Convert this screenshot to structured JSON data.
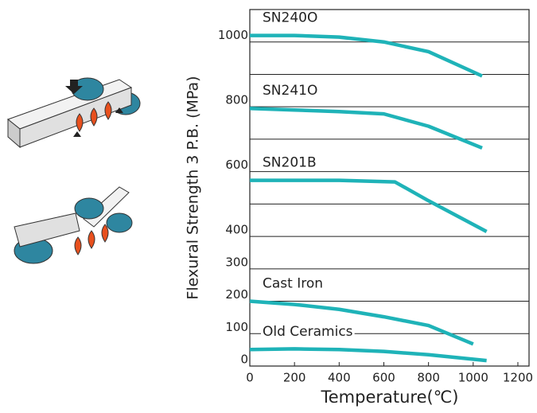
{
  "chart_data": {
    "type": "line",
    "y_label": "Flexural Strength 3 P.B. (MPa)",
    "x_label": "Temperature(℃)",
    "xlim": [
      0,
      1250
    ],
    "xticks": [
      0,
      200,
      400,
      600,
      800,
      1000,
      1200
    ],
    "ylim": [
      0,
      1100
    ],
    "yticks": [
      0,
      100,
      200,
      300,
      400,
      600,
      800,
      1000
    ],
    "unlabeled_gridlines": [
      500,
      700,
      900
    ],
    "grid": true,
    "series": [
      {
        "name": "SN240O",
        "color": "#1fb3b8",
        "x": [
          0,
          200,
          400,
          600,
          800,
          1040
        ],
        "values": [
          1020,
          1020,
          1015,
          1000,
          970,
          895
        ]
      },
      {
        "name": "SN241O",
        "color": "#1fb3b8",
        "x": [
          0,
          200,
          400,
          600,
          800,
          1040
        ],
        "values": [
          795,
          790,
          785,
          778,
          740,
          673
        ]
      },
      {
        "name": "SN201B",
        "color": "#1fb3b8",
        "x": [
          0,
          200,
          400,
          650,
          800,
          1060
        ],
        "values": [
          573,
          573,
          573,
          568,
          510,
          415
        ]
      },
      {
        "name": "Cast Iron",
        "color": "#1fb3b8",
        "x": [
          0,
          200,
          400,
          600,
          800,
          1000
        ],
        "values": [
          200,
          190,
          175,
          152,
          125,
          68
        ]
      },
      {
        "name": "Old Ceramics",
        "color": "#1fb3b8",
        "x": [
          0,
          200,
          400,
          600,
          800,
          1060
        ],
        "values": [
          51,
          53,
          51,
          45,
          35,
          17
        ]
      }
    ]
  }
}
